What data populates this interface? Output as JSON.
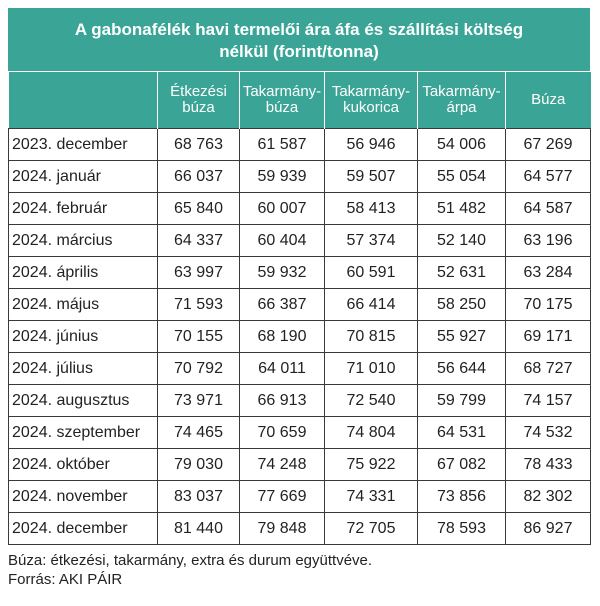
{
  "title": {
    "line1": "A gabonafélék havi termelői ára áfa és szállítási költség",
    "line2": "nélkül (forint/tonna)"
  },
  "columns": [
    {
      "line1": "",
      "line2": ""
    },
    {
      "line1": "Étkezési",
      "line2": "búza"
    },
    {
      "line1": "Takarmány-",
      "line2": "búza"
    },
    {
      "line1": "Takarmány-",
      "line2": "kukorica"
    },
    {
      "line1": "Takarmány-",
      "line2": "árpa"
    },
    {
      "line1": "Búza",
      "line2": ""
    }
  ],
  "rows": [
    [
      "2023. december",
      "68 763",
      "61 587",
      "56 946",
      "54 006",
      "67 269"
    ],
    [
      "2024. január",
      "66 037",
      "59 939",
      "59 507",
      "55 054",
      "64 577"
    ],
    [
      "2024. február",
      "65 840",
      "60 007",
      "58 413",
      "51 482",
      "64 587"
    ],
    [
      "2024. március",
      "64 337",
      "60 404",
      "57 374",
      "52 140",
      "63 196"
    ],
    [
      "2024. április",
      "63 997",
      "59 932",
      "60 591",
      "52 631",
      "63 284"
    ],
    [
      "2024. május",
      "71 593",
      "66 387",
      "66 414",
      "58 250",
      "70 175"
    ],
    [
      "2024. június",
      "70 155",
      "68 190",
      "70 815",
      "55 927",
      "69 171"
    ],
    [
      "2024. július",
      "70 792",
      "64 011",
      "71 010",
      "56 644",
      "68 727"
    ],
    [
      "2024. augusztus",
      "73 971",
      "66 913",
      "72 540",
      "59 799",
      "74 157"
    ],
    [
      "2024. szeptember",
      "74 465",
      "70 659",
      "74 804",
      "64 531",
      "74 532"
    ],
    [
      "2024. október",
      "79 030",
      "74 248",
      "75 922",
      "67 082",
      "78 433"
    ],
    [
      "2024. november",
      "83 037",
      "77 669",
      "74 331",
      "73 856",
      "82 302"
    ],
    [
      "2024. december",
      "81 440",
      "79 848",
      "72 705",
      "78 593",
      "86 927"
    ]
  ],
  "footnote": "Búza: étkezési, takarmány, extra és durum együttvéve.",
  "source": "Forrás: AKI PÁIR",
  "colors": {
    "header_bg": "#3aa597",
    "header_text": "#ffffff",
    "grid": "#3a3a3a"
  }
}
